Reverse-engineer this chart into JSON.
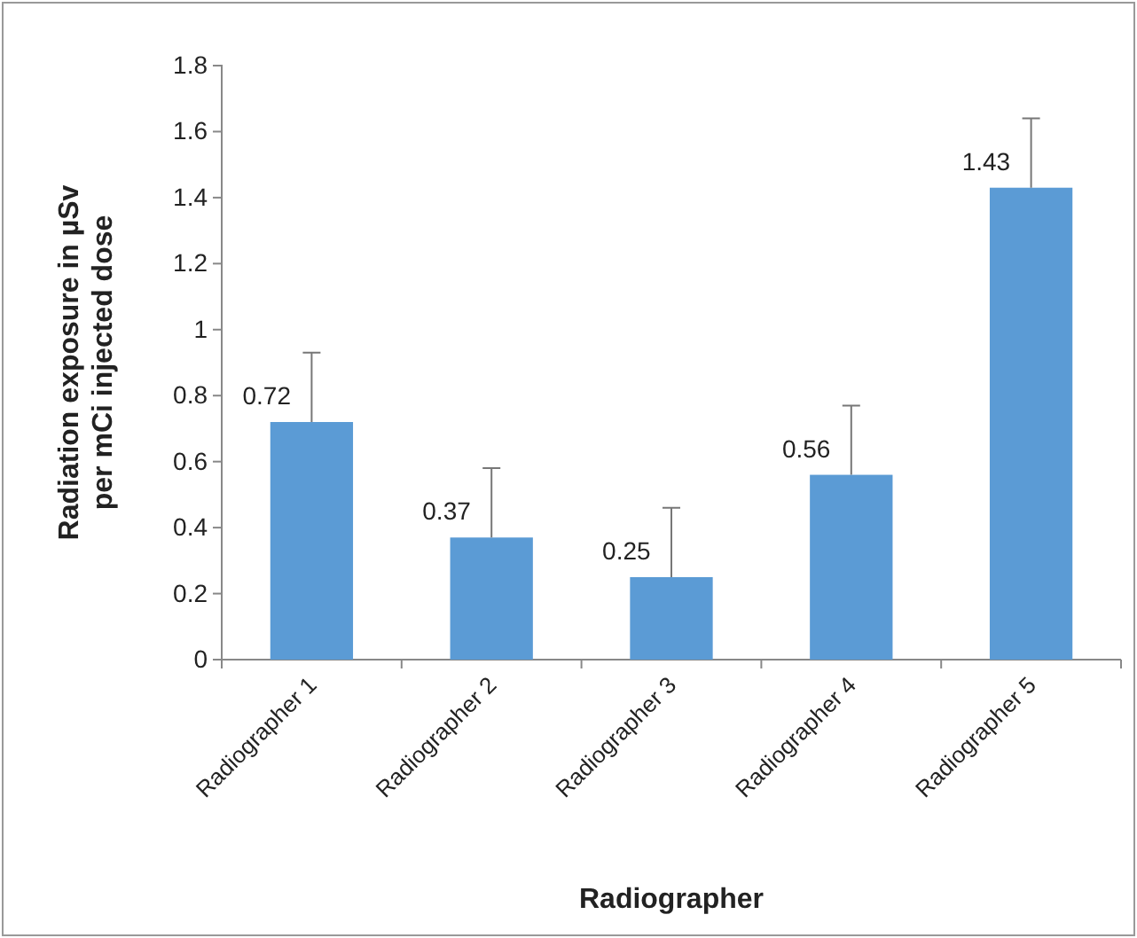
{
  "chart_data": {
    "type": "bar",
    "xlabel": "Radiographer",
    "ylabel": "Radiation exposure in µSv per mCi injected dose",
    "categories": [
      "Radiographer 1",
      "Radiographer 2",
      "Radiographer 3",
      "Radiographer 4",
      "Radiographer 5"
    ],
    "values": [
      0.72,
      0.37,
      0.25,
      0.56,
      1.43
    ],
    "errors": [
      [
        0.72,
        0.93
      ],
      [
        0.37,
        0.58
      ],
      [
        0.25,
        0.46
      ],
      [
        0.56,
        0.77
      ],
      [
        1.43,
        1.64
      ]
    ],
    "color": "#5b9bd5",
    "data_labels": true,
    "ylim": [
      0,
      1.8
    ],
    "yticks": [
      0,
      0.2,
      0.4,
      0.6,
      0.8,
      1,
      1.2,
      1.4,
      1.6,
      1.8
    ]
  }
}
